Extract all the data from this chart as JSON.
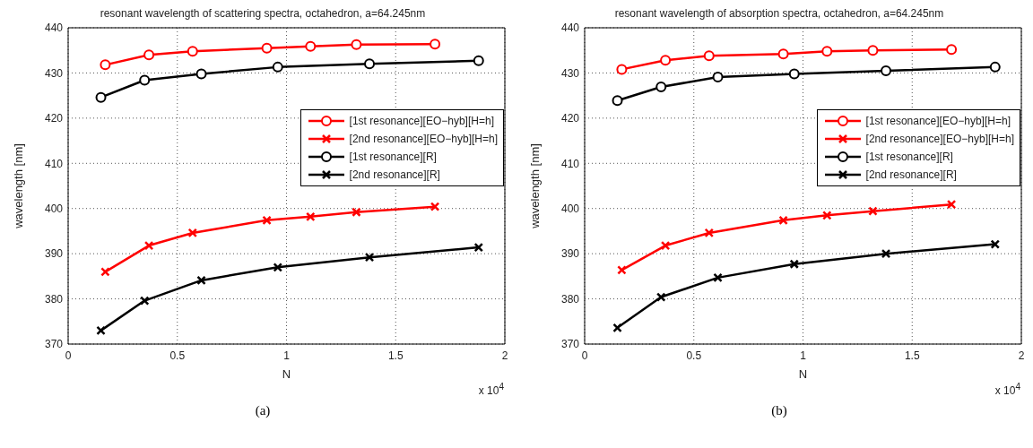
{
  "chart_data": [
    {
      "type": "line",
      "title": "resonant wavelength of scattering spectra, octahedron, a=64.245nm",
      "xlabel": "N",
      "ylabel": "wavelength [nm]",
      "xlim": [
        0,
        2
      ],
      "xticks": [
        0,
        0.5,
        1,
        1.5,
        2
      ],
      "ylim": [
        370,
        440
      ],
      "yticks": [
        370,
        380,
        390,
        400,
        410,
        420,
        430,
        440
      ],
      "grid": true,
      "legend": "right",
      "annotations": [
        "x 10$^{4}$",
        "(a)"
      ],
      "series": [
        {
          "name": "[1st resonance][EO−hyb][H=h]",
          "color": "#ff0000",
          "marker": "circle",
          "x": [
            0.17,
            0.37,
            0.57,
            0.91,
            1.11,
            1.32,
            1.68
          ],
          "values": [
            431.8,
            434.0,
            434.8,
            435.5,
            435.9,
            436.3,
            436.4
          ]
        },
        {
          "name": "[2nd resonance][EO−hyb][H=h]",
          "color": "#ff0000",
          "marker": "cross",
          "x": [
            0.17,
            0.37,
            0.57,
            0.91,
            1.11,
            1.32,
            1.68
          ],
          "values": [
            386.0,
            391.8,
            394.6,
            397.4,
            398.2,
            399.2,
            400.4
          ]
        },
        {
          "name": "[1st resonance][R]",
          "color": "#000000",
          "marker": "circle",
          "x": [
            0.15,
            0.35,
            0.61,
            0.96,
            1.38,
            1.88
          ],
          "values": [
            424.6,
            428.4,
            429.8,
            431.3,
            432.0,
            432.7
          ]
        },
        {
          "name": "[2nd resonance][R]",
          "color": "#000000",
          "marker": "cross",
          "x": [
            0.15,
            0.35,
            0.61,
            0.96,
            1.38,
            1.88
          ],
          "values": [
            373.0,
            379.6,
            384.1,
            387.0,
            389.2,
            391.4
          ]
        }
      ]
    },
    {
      "type": "line",
      "title": "resonant wavelength of absorption spectra, octahedron, a=64.245nm",
      "xlabel": "N",
      "ylabel": "wavelength [nm]",
      "xlim": [
        0,
        2
      ],
      "xticks": [
        0,
        0.5,
        1,
        1.5,
        2
      ],
      "ylim": [
        370,
        440
      ],
      "yticks": [
        370,
        380,
        390,
        400,
        410,
        420,
        430,
        440
      ],
      "grid": true,
      "legend": "right",
      "annotations": [
        "x 10$^{4}$",
        "(b)"
      ],
      "series": [
        {
          "name": "[1st resonance][EO−hyb][H=h]",
          "color": "#ff0000",
          "marker": "circle",
          "x": [
            0.17,
            0.37,
            0.57,
            0.91,
            1.11,
            1.32,
            1.68
          ],
          "values": [
            430.8,
            432.8,
            433.8,
            434.2,
            434.8,
            435.0,
            435.2
          ]
        },
        {
          "name": "[2nd resonance][EO−hyb][H=h]",
          "color": "#ff0000",
          "marker": "cross",
          "x": [
            0.17,
            0.37,
            0.57,
            0.91,
            1.11,
            1.32,
            1.68
          ],
          "values": [
            386.4,
            391.8,
            394.6,
            397.4,
            398.5,
            399.4,
            400.9
          ]
        },
        {
          "name": "[1st resonance][R]",
          "color": "#000000",
          "marker": "circle",
          "x": [
            0.15,
            0.35,
            0.61,
            0.96,
            1.38,
            1.88
          ],
          "values": [
            423.9,
            426.9,
            429.1,
            429.8,
            430.5,
            431.3
          ]
        },
        {
          "name": "[2nd resonance][R]",
          "color": "#000000",
          "marker": "cross",
          "x": [
            0.15,
            0.35,
            0.61,
            0.96,
            1.38,
            1.88
          ],
          "values": [
            373.6,
            380.4,
            384.7,
            387.7,
            390.0,
            392.1
          ]
        }
      ]
    }
  ]
}
